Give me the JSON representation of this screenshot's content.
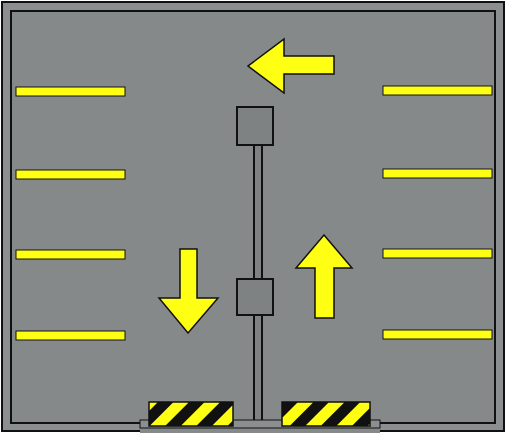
{
  "colors": {
    "asphalt": "#85898a",
    "wall": "#8b8f90",
    "outline": "#111111",
    "stripe": "#ffff14",
    "arrow": "#ffff14",
    "post": "#7e8283",
    "hazard_yellow": "#ffff14",
    "hazard_black": "#111111"
  },
  "icons": {
    "arrow_top": "arrow-left-icon",
    "arrow_bottom_left": "arrow-down-icon",
    "arrow_bottom_right": "arrow-up-icon"
  },
  "parking": {
    "left_stripe_count": 4,
    "right_stripe_count": 4
  },
  "entrances": {
    "hazard_gate_count": 2
  }
}
